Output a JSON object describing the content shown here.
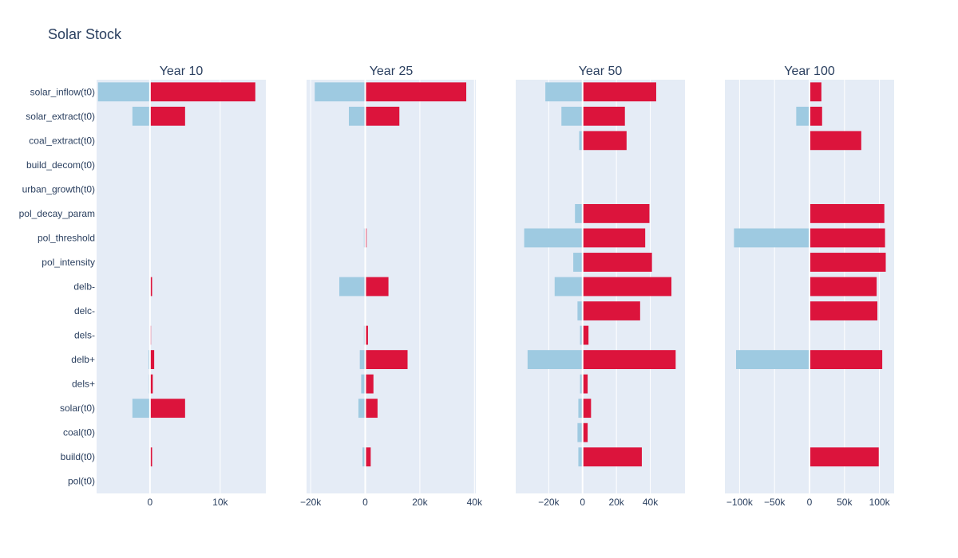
{
  "title": "Solar Stock",
  "colors": {
    "negative": "#9ecae1",
    "positive": "#dc143c",
    "plot_bg": "#e5ecf6",
    "gridline": "#ffffff",
    "text": "#2a3f5f"
  },
  "chart_data": {
    "type": "bar",
    "orientation": "horizontal",
    "barmode": "overlay",
    "categories": [
      "solar_inflow(t0)",
      "solar_extract(t0)",
      "coal_extract(t0)",
      "build_decom(t0)",
      "urban_growth(t0)",
      "pol_decay_param",
      "pol_threshold",
      "pol_intensity",
      "delb-",
      "delc-",
      "dels-",
      "delb+",
      "dels+",
      "solar(t0)",
      "coal(t0)",
      "build(t0)",
      "pol(t0)"
    ],
    "panels": [
      {
        "subtitle": "Year 10",
        "xlim": [
          -7600,
          16500
        ],
        "ticks": [
          {
            "v": 0,
            "label": "0"
          },
          {
            "v": 10000,
            "label": "10k"
          }
        ],
        "negative": [
          -7400,
          -2500,
          0,
          0,
          0,
          0,
          0,
          0,
          -100,
          0,
          -50,
          -200,
          -150,
          -2500,
          0,
          -100,
          0
        ],
        "positive": [
          15000,
          5000,
          0,
          0,
          0,
          0,
          0,
          0,
          300,
          0,
          150,
          600,
          400,
          5000,
          0,
          300,
          0
        ]
      },
      {
        "subtitle": "Year 25",
        "xlim": [
          -21500,
          40500
        ],
        "ticks": [
          {
            "v": -20000,
            "label": "−20k"
          },
          {
            "v": 0,
            "label": "0"
          },
          {
            "v": 20000,
            "label": "20k"
          },
          {
            "v": 40000,
            "label": "40k"
          }
        ],
        "negative": [
          -18500,
          -6000,
          -100,
          0,
          0,
          0,
          -500,
          0,
          -9500,
          0,
          -500,
          -2000,
          -1500,
          -2500,
          0,
          -1000,
          0
        ],
        "positive": [
          37000,
          12500,
          0,
          0,
          0,
          0,
          500,
          0,
          8500,
          0,
          1000,
          15500,
          3000,
          4500,
          0,
          2000,
          0
        ]
      },
      {
        "subtitle": "Year 50",
        "xlim": [
          -39500,
          60500
        ],
        "ticks": [
          {
            "v": -20000,
            "label": "−20k"
          },
          {
            "v": 0,
            "label": "0"
          },
          {
            "v": 20000,
            "label": "20k"
          },
          {
            "v": 40000,
            "label": "40k"
          }
        ],
        "negative": [
          -22000,
          -12500,
          -2000,
          0,
          0,
          -4500,
          -34500,
          -5500,
          -16500,
          -3000,
          -1500,
          -32500,
          -1500,
          -2500,
          -3000,
          -2500,
          0
        ],
        "positive": [
          43500,
          25000,
          26000,
          0,
          0,
          39500,
          37000,
          41000,
          52500,
          34000,
          3500,
          55000,
          3000,
          5000,
          3000,
          35000,
          0
        ]
      },
      {
        "subtitle": "Year 100",
        "xlim": [
          -121000,
          121000
        ],
        "ticks": [
          {
            "v": -100000,
            "label": "−100k"
          },
          {
            "v": -50000,
            "label": "−50k"
          },
          {
            "v": 0,
            "label": "0"
          },
          {
            "v": 50000,
            "label": "50k"
          },
          {
            "v": 100000,
            "label": "100k"
          }
        ],
        "negative": [
          0,
          -19000,
          0,
          0,
          0,
          0,
          -108000,
          0,
          0,
          0,
          0,
          -105000,
          0,
          0,
          0,
          0,
          0
        ],
        "positive": [
          17000,
          18000,
          74000,
          0,
          0,
          107000,
          108000,
          109000,
          96000,
          97000,
          0,
          104000,
          0,
          0,
          0,
          99000,
          0
        ]
      }
    ]
  }
}
